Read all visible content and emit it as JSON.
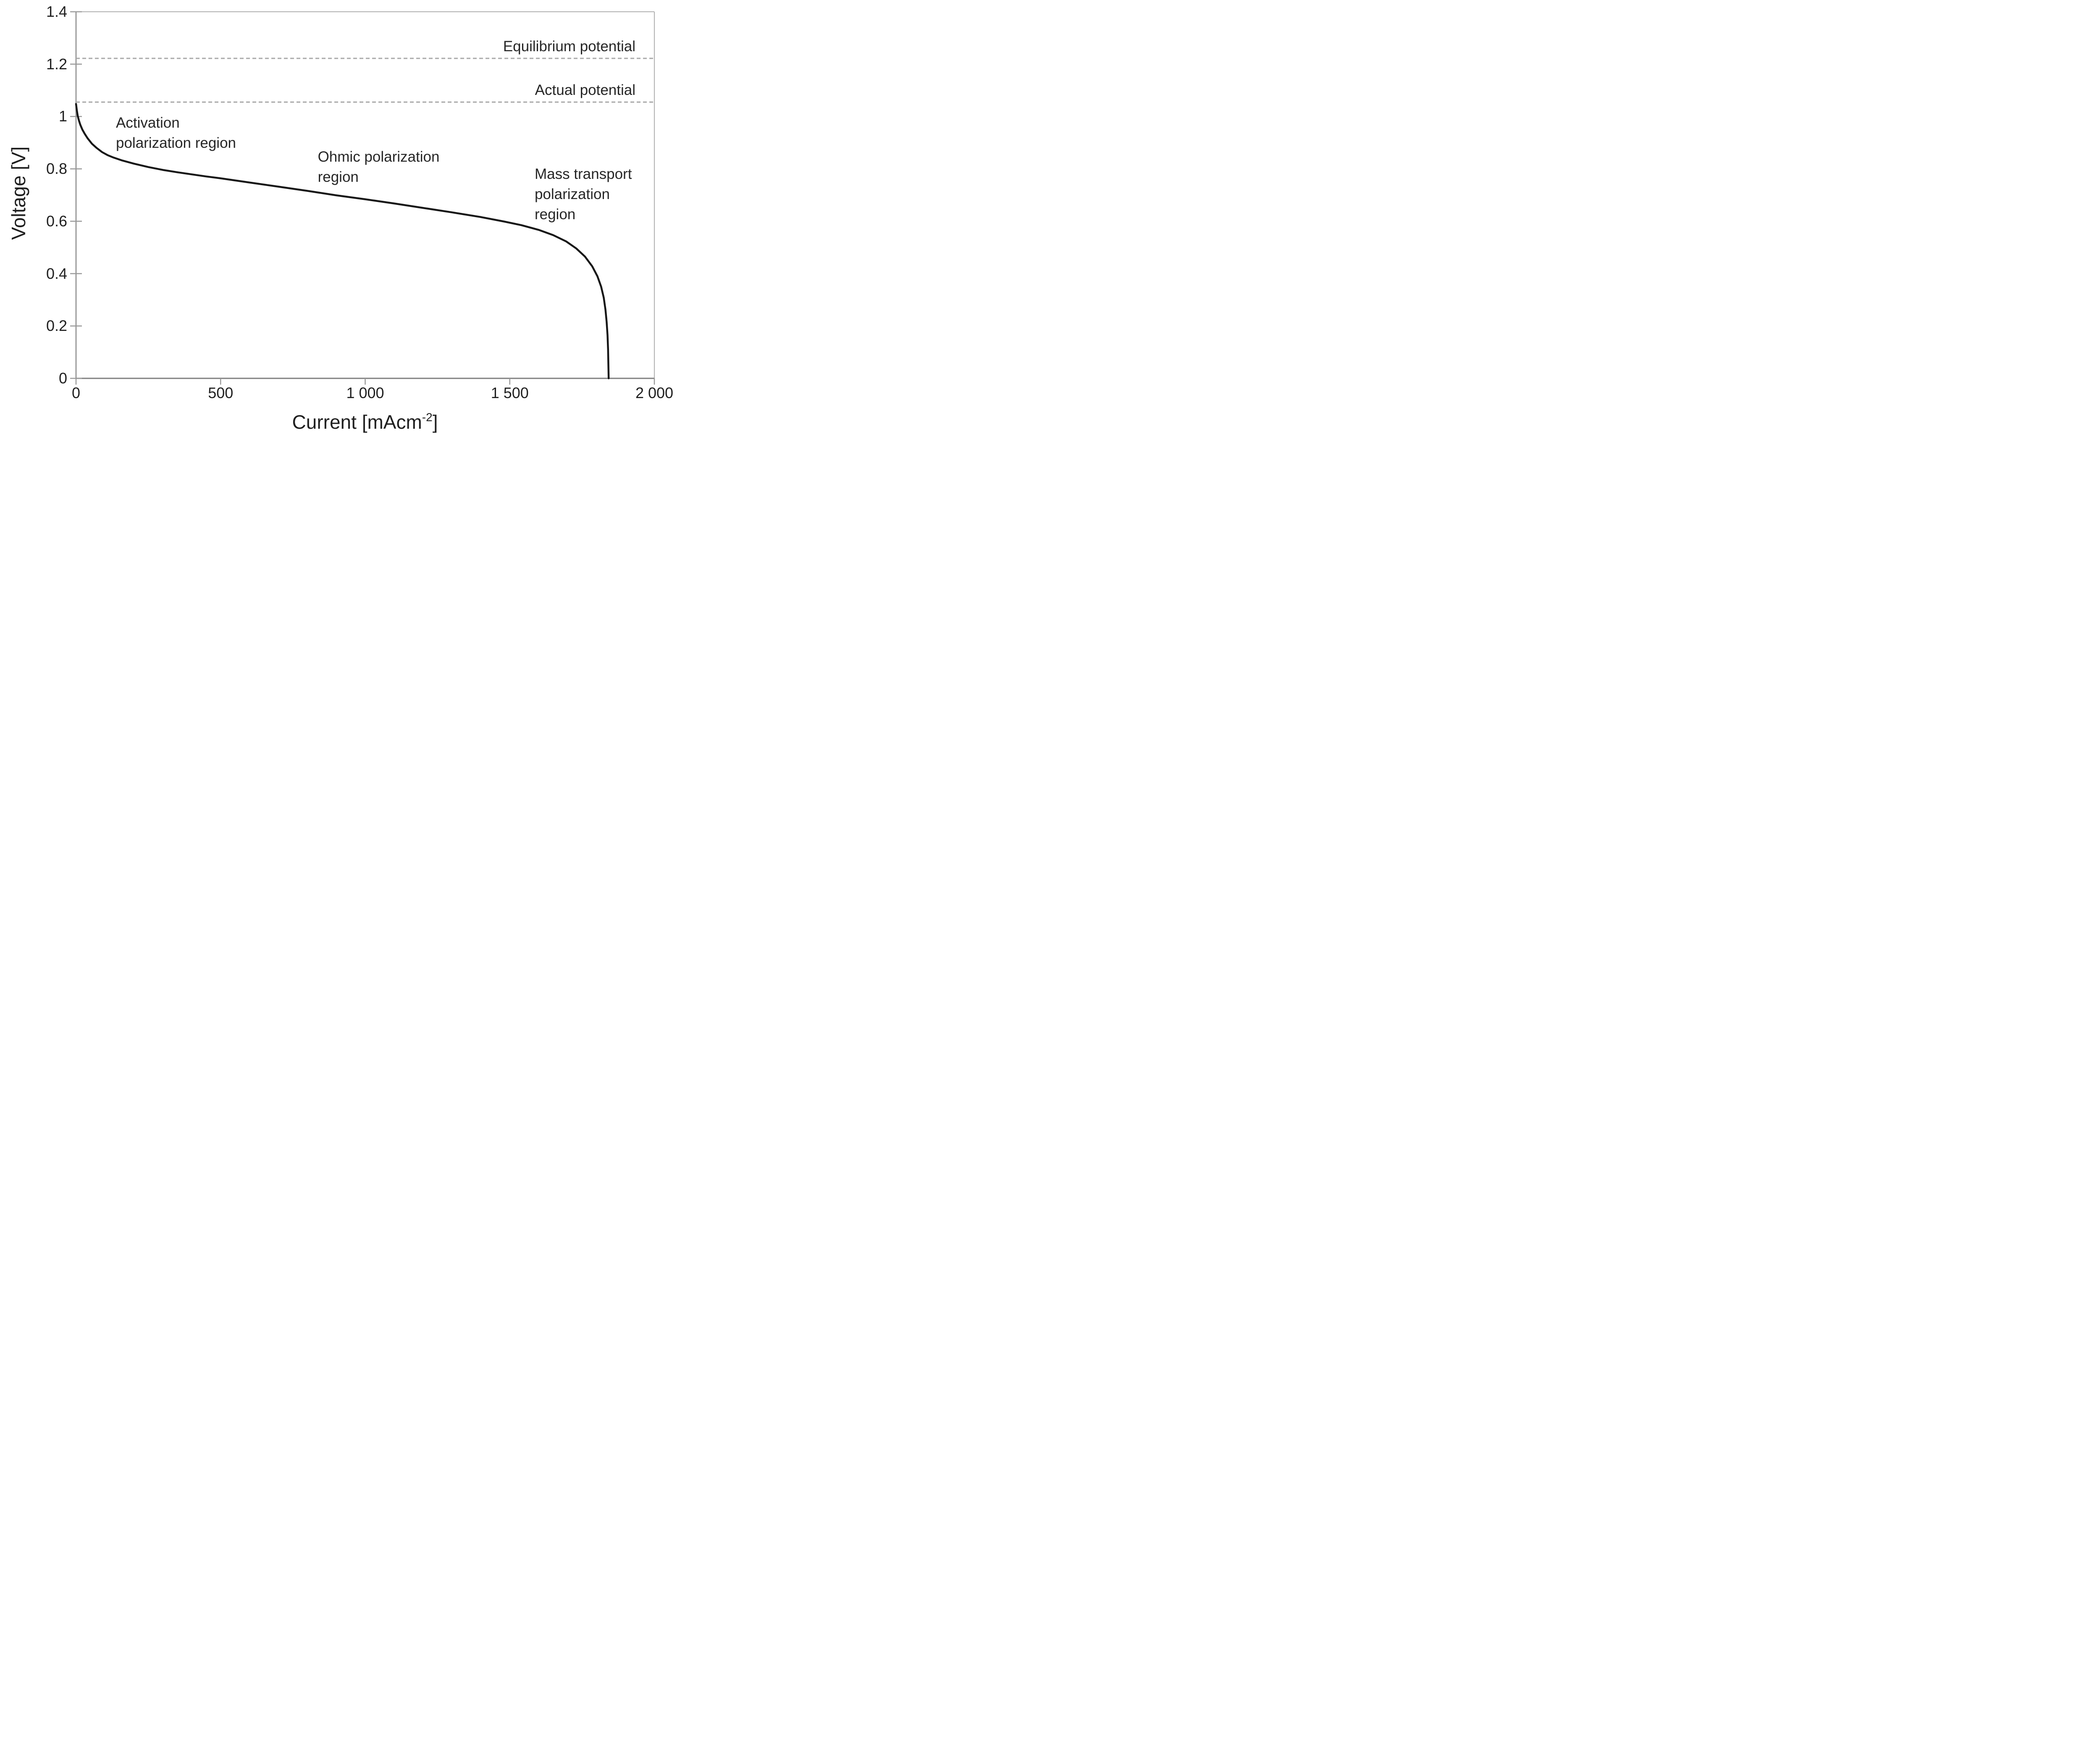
{
  "chart_data": {
    "type": "line",
    "title": "",
    "xlabel": "Current [mAcm⁻²]",
    "xlabel_parts": {
      "base": "Current [mAcm",
      "sup": "-2",
      "close": "]"
    },
    "ylabel": "Voltage [V]",
    "xlim": [
      0,
      2000
    ],
    "ylim": [
      0,
      1.4
    ],
    "grid": false,
    "legend_position": "none",
    "x_ticks": [
      {
        "value": 0,
        "label": "0"
      },
      {
        "value": 500,
        "label": "500"
      },
      {
        "value": 1000,
        "label": "1 000"
      },
      {
        "value": 1500,
        "label": "1 500"
      },
      {
        "value": 2000,
        "label": "2 000"
      }
    ],
    "y_ticks": [
      {
        "value": 0,
        "label": "0"
      },
      {
        "value": 0.2,
        "label": "0.2"
      },
      {
        "value": 0.4,
        "label": "0.4"
      },
      {
        "value": 0.6,
        "label": "0.6"
      },
      {
        "value": 0.8,
        "label": "0.8"
      },
      {
        "value": 1.0,
        "label": "1"
      },
      {
        "value": 1.2,
        "label": "1.2"
      },
      {
        "value": 1.4,
        "label": "1.4"
      }
    ],
    "series": [
      {
        "name": "fuel-cell-polarization-curve",
        "color": "#161616",
        "points": [
          [
            0,
            1.048
          ],
          [
            3,
            1.022
          ],
          [
            6,
            1.002
          ],
          [
            10,
            0.985
          ],
          [
            15,
            0.968
          ],
          [
            22,
            0.95
          ],
          [
            30,
            0.934
          ],
          [
            40,
            0.917
          ],
          [
            55,
            0.896
          ],
          [
            70,
            0.881
          ],
          [
            90,
            0.864
          ],
          [
            110,
            0.852
          ],
          [
            130,
            0.843
          ],
          [
            160,
            0.832
          ],
          [
            200,
            0.82
          ],
          [
            250,
            0.807
          ],
          [
            300,
            0.796
          ],
          [
            350,
            0.787
          ],
          [
            400,
            0.779
          ],
          [
            450,
            0.771
          ],
          [
            500,
            0.764
          ],
          [
            600,
            0.748
          ],
          [
            700,
            0.732
          ],
          [
            800,
            0.716
          ],
          [
            900,
            0.699
          ],
          [
            1000,
            0.684
          ],
          [
            1100,
            0.668
          ],
          [
            1200,
            0.651
          ],
          [
            1300,
            0.634
          ],
          [
            1400,
            0.616
          ],
          [
            1480,
            0.599
          ],
          [
            1540,
            0.585
          ],
          [
            1600,
            0.567
          ],
          [
            1650,
            0.547
          ],
          [
            1695,
            0.523
          ],
          [
            1730,
            0.496
          ],
          [
            1760,
            0.465
          ],
          [
            1785,
            0.428
          ],
          [
            1803,
            0.39
          ],
          [
            1816,
            0.35
          ],
          [
            1825,
            0.308
          ],
          [
            1831,
            0.262
          ],
          [
            1835,
            0.215
          ],
          [
            1838,
            0.165
          ],
          [
            1840,
            0.11
          ],
          [
            1841,
            0.055
          ],
          [
            1842,
            0.0
          ]
        ]
      }
    ],
    "reference_lines": [
      {
        "name": "equilibrium-potential",
        "label": "Equilibrium potential",
        "value": 1.222,
        "style": "dashed",
        "color": "#a8a8a8"
      },
      {
        "name": "actual-potential",
        "label": "Actual potential",
        "value": 1.055,
        "style": "dashed",
        "color": "#a8a8a8"
      }
    ],
    "annotations": [
      {
        "name": "activation-region",
        "lines": [
          "Activation",
          "polarization region"
        ],
        "x": 138,
        "y": 0.975
      },
      {
        "name": "ohmic-region",
        "lines": [
          "Ohmic polarization",
          "region"
        ],
        "x": 836,
        "y": 0.845
      },
      {
        "name": "mass-transport-region",
        "lines": [
          "Mass transport",
          "polarization",
          "region"
        ],
        "x": 1586,
        "y": 0.78
      }
    ]
  },
  "colors": {
    "curve": "#161616",
    "dashed_reference": "#a8a8a8",
    "axis_bottom": "#7f7f7f",
    "axis_left": "#9a9a9a",
    "border_light": "#b0b0b0",
    "tick": "#999999",
    "text": "#262626",
    "background": "#ffffff"
  }
}
